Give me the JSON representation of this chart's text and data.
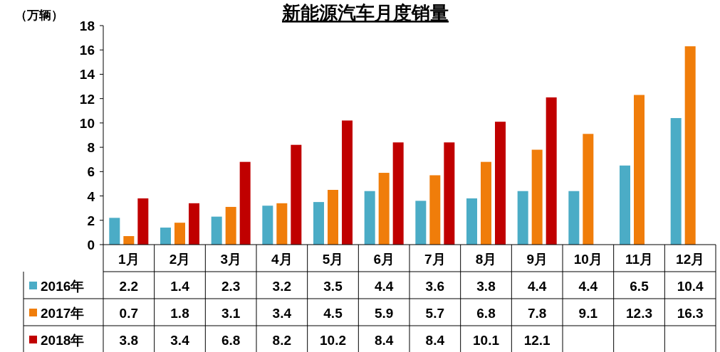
{
  "chart_data": {
    "type": "bar",
    "title": "新能源汽车月度销量",
    "ylabel": "（万辆）",
    "categories": [
      "1月",
      "2月",
      "3月",
      "4月",
      "5月",
      "6月",
      "7月",
      "8月",
      "9月",
      "10月",
      "11月",
      "12月"
    ],
    "series": [
      {
        "name": "2016年",
        "color": "#4bacc6",
        "values": [
          2.2,
          1.4,
          2.3,
          3.2,
          3.5,
          4.4,
          3.6,
          3.8,
          4.4,
          4.4,
          6.5,
          10.4
        ]
      },
      {
        "name": "2017年",
        "color": "#f07d0a",
        "values": [
          0.7,
          1.8,
          3.1,
          3.4,
          4.5,
          5.9,
          5.7,
          6.8,
          7.8,
          9.1,
          12.3,
          16.3
        ]
      },
      {
        "name": "2018年",
        "color": "#c00000",
        "values": [
          3.8,
          3.4,
          6.8,
          8.2,
          10.2,
          8.4,
          8.4,
          10.1,
          12.1,
          null,
          null,
          null
        ]
      }
    ],
    "ylim": [
      0,
      18
    ],
    "yticks": [
      0,
      2,
      4,
      6,
      8,
      10,
      12,
      14,
      16,
      18
    ],
    "data_labels": true,
    "legend": "bottom left"
  }
}
